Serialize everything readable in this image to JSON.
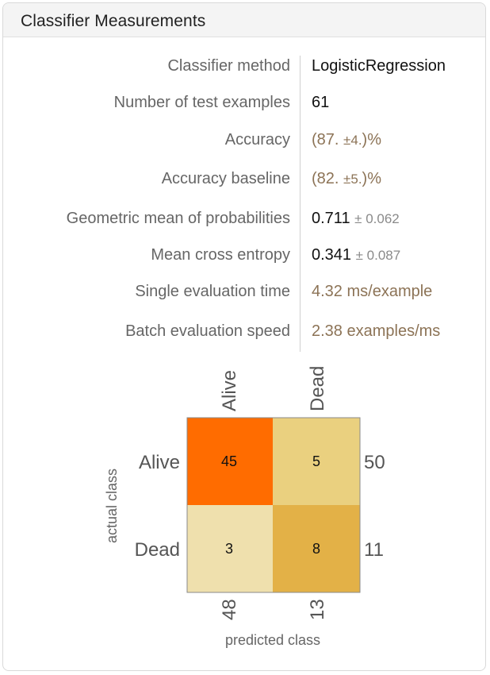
{
  "panel": {
    "title": "Classifier Measurements"
  },
  "rows": [
    {
      "label": "Classifier method",
      "value": "LogisticRegression"
    },
    {
      "label": "Number of test examples",
      "value": "61"
    },
    {
      "label": "Accuracy",
      "value_open": "(87. ",
      "pm": "±4.",
      "value_close": ")%"
    },
    {
      "label": "Accuracy baseline",
      "value_open": "(82. ",
      "pm": "±5.",
      "value_close": ")%"
    },
    {
      "label": "Geometric mean of probabilities",
      "value": "0.711",
      "pm": "± 0.062"
    },
    {
      "label": "Mean cross entropy",
      "value": "0.341",
      "pm": "± 0.087"
    },
    {
      "label": "Single evaluation time",
      "value": "4.32 ms/example"
    },
    {
      "label": "Batch evaluation speed",
      "value": "2.38 examples/ms"
    }
  ],
  "confusion_matrix": {
    "classes": [
      "Alive",
      "Dead"
    ],
    "cells": [
      [
        45,
        5
      ],
      [
        3,
        8
      ]
    ],
    "row_totals": [
      "50",
      "11"
    ],
    "col_totals": [
      "48",
      "13"
    ],
    "xlabel": "predicted class",
    "ylabel": "actual class",
    "colors": {
      "high": "#ff6c00",
      "mid_high": "#e3b147",
      "mid_low": "#ead07f",
      "low": "#efe0ad"
    }
  }
}
